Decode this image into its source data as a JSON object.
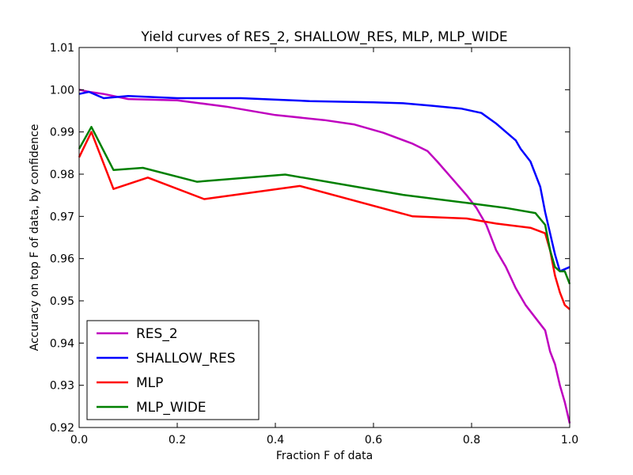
{
  "chart_data": {
    "type": "line",
    "title": "Yield curves of RES_2, SHALLOW_RES, MLP, MLP_WIDE",
    "xlabel": "Fraction F of data",
    "ylabel": "Accuracy on top F of data, by confidence",
    "xlim": [
      0.0,
      1.0
    ],
    "ylim": [
      0.92,
      1.01
    ],
    "xticks": [
      "0.0",
      "0.2",
      "0.4",
      "0.6",
      "0.8",
      "1.0"
    ],
    "yticks": [
      "0.92",
      "0.93",
      "0.94",
      "0.95",
      "0.96",
      "0.97",
      "0.98",
      "0.99",
      "1.00",
      "1.01"
    ],
    "grid": false,
    "legend_position": "lower-left",
    "series": [
      {
        "name": "RES_2",
        "color": "#bf00bf",
        "x": [
          0.0,
          0.02,
          0.05,
          0.1,
          0.2,
          0.3,
          0.4,
          0.5,
          0.56,
          0.62,
          0.68,
          0.71,
          0.73,
          0.76,
          0.79,
          0.81,
          0.83,
          0.85,
          0.87,
          0.89,
          0.91,
          0.93,
          0.95,
          0.96,
          0.97,
          0.98,
          0.99,
          1.0
        ],
        "y": [
          1.0,
          0.9995,
          0.999,
          0.9978,
          0.9975,
          0.996,
          0.994,
          0.9928,
          0.9918,
          0.9898,
          0.9872,
          0.9855,
          0.983,
          0.979,
          0.975,
          0.972,
          0.968,
          0.962,
          0.958,
          0.953,
          0.949,
          0.946,
          0.943,
          0.938,
          0.935,
          0.93,
          0.926,
          0.921
        ]
      },
      {
        "name": "SHALLOW_RES",
        "color": "#0000ff",
        "x": [
          0.0,
          0.02,
          0.05,
          0.1,
          0.2,
          0.33,
          0.47,
          0.6,
          0.66,
          0.72,
          0.78,
          0.82,
          0.85,
          0.87,
          0.89,
          0.9,
          0.92,
          0.94,
          0.95,
          0.96,
          0.97,
          0.98,
          1.0
        ],
        "y": [
          0.999,
          0.9995,
          0.998,
          0.9985,
          0.998,
          0.998,
          0.9973,
          0.997,
          0.9968,
          0.9962,
          0.9955,
          0.9945,
          0.992,
          0.99,
          0.988,
          0.986,
          0.983,
          0.977,
          0.971,
          0.966,
          0.961,
          0.957,
          0.958
        ]
      },
      {
        "name": "MLP",
        "color": "#ff0000",
        "x": [
          0.0,
          0.025,
          0.07,
          0.14,
          0.255,
          0.45,
          0.68,
          0.79,
          0.85,
          0.92,
          0.95,
          0.96,
          0.97,
          0.98,
          0.99,
          1.0
        ],
        "y": [
          0.984,
          0.99,
          0.9765,
          0.9792,
          0.9741,
          0.9772,
          0.97,
          0.9695,
          0.9683,
          0.9673,
          0.966,
          0.962,
          0.956,
          0.952,
          0.949,
          0.948
        ]
      },
      {
        "name": "MLP_WIDE",
        "color": "#008000",
        "x": [
          0.0,
          0.025,
          0.07,
          0.13,
          0.24,
          0.42,
          0.66,
          0.79,
          0.87,
          0.93,
          0.95,
          0.96,
          0.97,
          0.98,
          0.99,
          1.0
        ],
        "y": [
          0.986,
          0.9912,
          0.981,
          0.9815,
          0.9782,
          0.9799,
          0.9751,
          0.9732,
          0.972,
          0.9708,
          0.968,
          0.962,
          0.958,
          0.957,
          0.957,
          0.954
        ]
      }
    ]
  }
}
